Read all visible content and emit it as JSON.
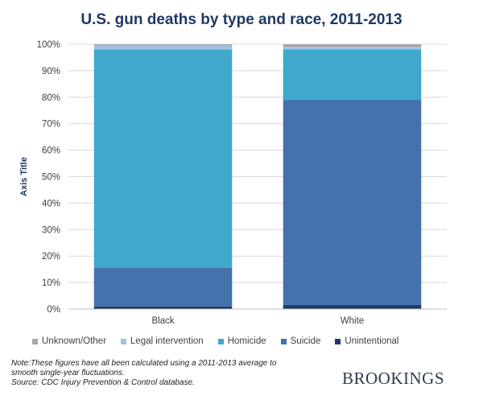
{
  "chart_data": {
    "type": "bar",
    "stacked": true,
    "title": "U.S. gun deaths by type and race, 2011-2013",
    "ylabel": "Axis Title",
    "xlabel": "",
    "categories": [
      "Black",
      "White"
    ],
    "ylim": [
      0,
      100
    ],
    "yticks": [
      "0%",
      "10%",
      "20%",
      "30%",
      "40%",
      "50%",
      "60%",
      "70%",
      "80%",
      "90%",
      "100%"
    ],
    "grid": true,
    "legend_position": "bottom",
    "series": [
      {
        "name": "Unintentional",
        "color": "#1f3864",
        "values": [
          1.0,
          1.5
        ]
      },
      {
        "name": "Suicide",
        "color": "#4472ad",
        "values": [
          14.5,
          77.5
        ]
      },
      {
        "name": "Homicide",
        "color": "#3fa8cc",
        "values": [
          82.5,
          19.0
        ]
      },
      {
        "name": "Legal intervention",
        "color": "#9dc3e6",
        "values": [
          1.5,
          1.0
        ]
      },
      {
        "name": "Unknown/Other",
        "color": "#a6a6a6",
        "values": [
          0.5,
          1.0
        ]
      }
    ],
    "legend_order": [
      "Unknown/Other",
      "Legal intervention",
      "Homicide",
      "Suicide",
      "Unintentional"
    ]
  },
  "notes": [
    "Note:These figures have all been calculated using a 2011-2013 average to",
    "smooth single-year fluctuations.",
    "Source: CDC Injury Prevention & Control database."
  ],
  "brand": "BROOKINGS"
}
